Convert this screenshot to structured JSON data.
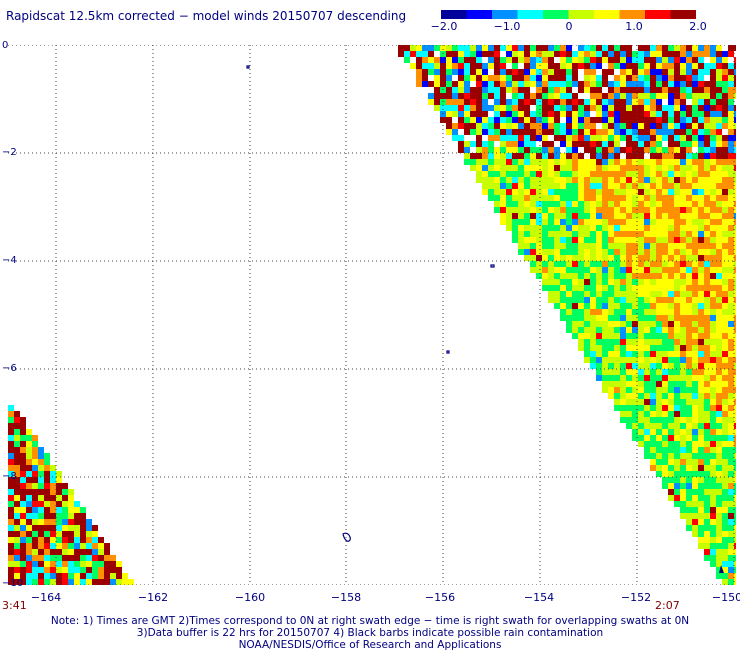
{
  "title": "Rapidscat 12.5km corrected − model winds 20150707 descending",
  "colorbar": {
    "ticks": [
      "−2.0",
      "−1.0",
      "0",
      "1.0",
      "2.0"
    ],
    "range": [
      -2.0,
      2.0
    ],
    "colors": [
      "#00009a",
      "#0000ff",
      "#0090ff",
      "#00ffff",
      "#00ff60",
      "#c8ff00",
      "#ffff00",
      "#ff9000",
      "#ff0000",
      "#9a0000"
    ]
  },
  "axes": {
    "y_labels": [
      "0",
      "−2",
      "−4",
      "−6",
      "−8",
      "−10"
    ],
    "x_labels": [
      "−164",
      "−162",
      "−160",
      "−158",
      "−156",
      "−154",
      "−152",
      "−150"
    ],
    "lon_range": [
      -165,
      -150
    ],
    "lat_range": [
      0,
      -10
    ]
  },
  "times": {
    "left": "3:41",
    "right": "2:07"
  },
  "notes": [
    "Note: 1) Times are GMT 2)Times correspond to 0N at right swath edge − time is right swath for overlapping swaths at 0N",
    "3)Data buffer is 22 hrs for 20150707 4) Black barbs indicate possible rain contamination",
    "NOAA/NESDIS/Office of Research and Applications"
  ]
}
